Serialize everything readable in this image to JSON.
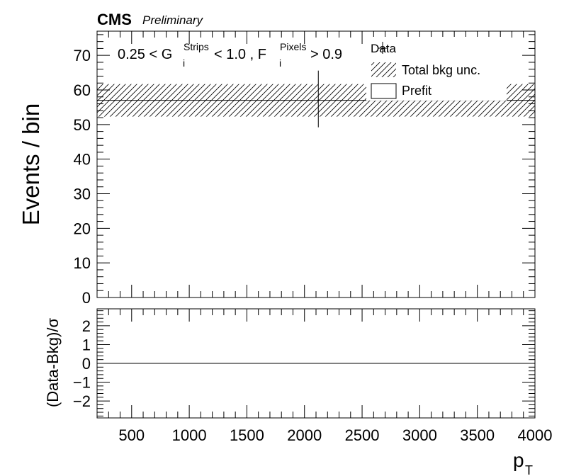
{
  "header": {
    "experiment": "CMS",
    "status": "Preliminary"
  },
  "selection": {
    "lower": "0.25 < G",
    "g_sup": "Strips",
    "g_sub": "i",
    "mid": " < 1.0 , F",
    "f_sup": "Pixels",
    "f_sub": "i",
    "upper": " > 0.9"
  },
  "legend": {
    "items": [
      {
        "label": "Data",
        "style": "marker"
      },
      {
        "label": "Total bkg unc.",
        "style": "hatch"
      },
      {
        "label": "Prefit",
        "style": "box"
      }
    ]
  },
  "chart_data": [
    {
      "type": "line",
      "panel": "main",
      "ylabel": "Events / bin",
      "xlim": [
        200,
        4000
      ],
      "ylim": [
        0,
        77
      ],
      "yticks": [
        0,
        10,
        20,
        30,
        40,
        50,
        60,
        70
      ],
      "background": {
        "name": "Prefit",
        "x": [
          200,
          4000
        ],
        "y": [
          57,
          57
        ]
      },
      "uncertainty": {
        "name": "Total bkg unc.",
        "x": [
          200,
          4000
        ],
        "low": [
          52.3,
          52.3
        ],
        "high": [
          61.7,
          61.7
        ]
      },
      "data": {
        "name": "Data",
        "x": [
          2120
        ],
        "y": [
          57
        ],
        "yerr_low": [
          7.8
        ],
        "yerr_high": [
          8.6
        ]
      }
    },
    {
      "type": "line",
      "panel": "ratio",
      "ylabel": "(Data-Bkg)/σ",
      "xlabel": "p",
      "xlabel_sub": "T",
      "xlim": [
        200,
        4000
      ],
      "ylim": [
        -2.9,
        2.9
      ],
      "yticks": [
        -2,
        -1,
        0,
        1,
        2
      ],
      "xticks": [
        500,
        1000,
        1500,
        2000,
        2500,
        3000,
        3500,
        4000
      ],
      "reference": {
        "x": [
          200,
          4000
        ],
        "y": [
          0,
          0
        ]
      }
    }
  ]
}
